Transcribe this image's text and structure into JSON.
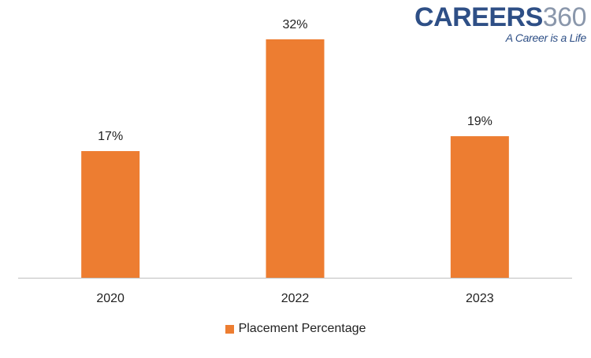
{
  "brand": {
    "name_text": "CAREERS",
    "name_number": "360",
    "tagline": "A Career is a Life"
  },
  "colors": {
    "bar": "#ed7d31",
    "axis": "#bfbfbf",
    "brand_primary": "#2e4f86",
    "brand_secondary": "#8a97ab"
  },
  "chart_data": {
    "type": "bar",
    "categories": [
      "2020",
      "2022",
      "2023"
    ],
    "series": [
      {
        "name": "Placement Percentage",
        "values": [
          17,
          32,
          19
        ]
      }
    ],
    "data_labels": [
      "17%",
      "32%",
      "19%"
    ],
    "ylim": [
      0,
      32
    ],
    "grid": false,
    "legend_position": "bottom",
    "title": "",
    "xlabel": "",
    "ylabel": ""
  }
}
